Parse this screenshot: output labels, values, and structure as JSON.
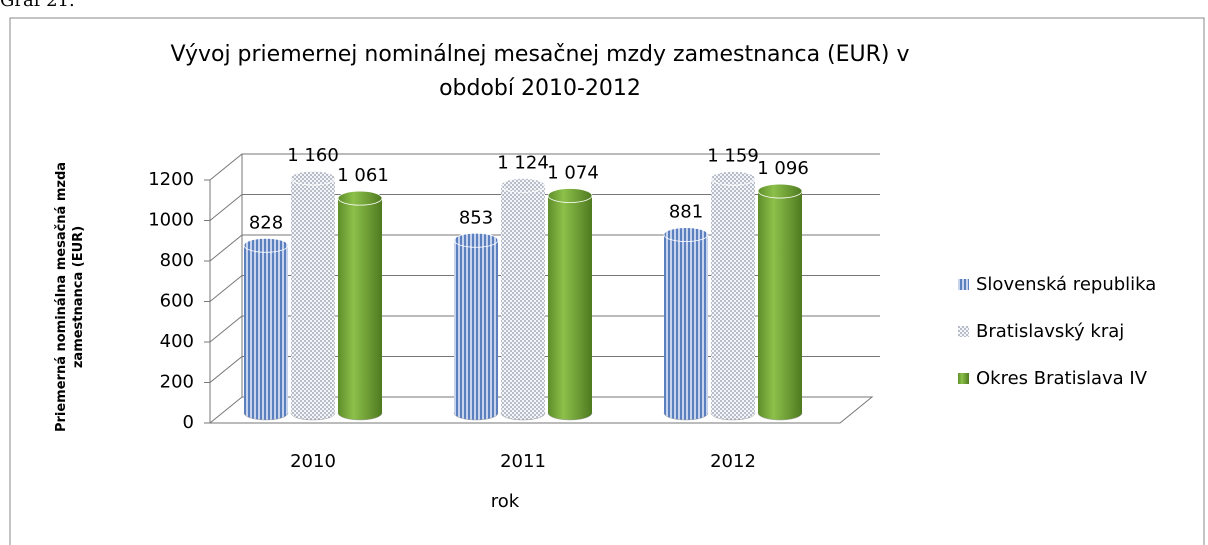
{
  "figure_label": "Graf 21.",
  "chart_data": {
    "type": "bar3d",
    "title": "Vývoj priemernej nominálnej mesačnej mzdy zamestnanca (EUR) v období 2010-2012",
    "y_label": "Priemerná nominálna mesačná mzda zamestnanca (EUR)",
    "x_label": "rok",
    "categories": [
      "2010",
      "2011",
      "2012"
    ],
    "series": [
      {
        "name": "Slovenská republika",
        "color": "#5c7fbf",
        "values": [
          828,
          853,
          881
        ],
        "value_labels": [
          "828",
          "853",
          "881"
        ]
      },
      {
        "name": "Bratislavský kraj",
        "color": "#dfe3ee",
        "values": [
          1160,
          1124,
          1159
        ],
        "value_labels": [
          "1 160",
          "1 124",
          "1 159"
        ]
      },
      {
        "name": "Okres Bratislava IV",
        "color": "#77a83b",
        "values": [
          1061,
          1074,
          1096
        ],
        "value_labels": [
          "1 061",
          "1 074",
          "1 096"
        ]
      }
    ],
    "ylim": [
      0,
      1200
    ],
    "yticks": [
      0,
      200,
      400,
      600,
      800,
      1000,
      1200
    ],
    "grid": true,
    "legend": "right"
  }
}
